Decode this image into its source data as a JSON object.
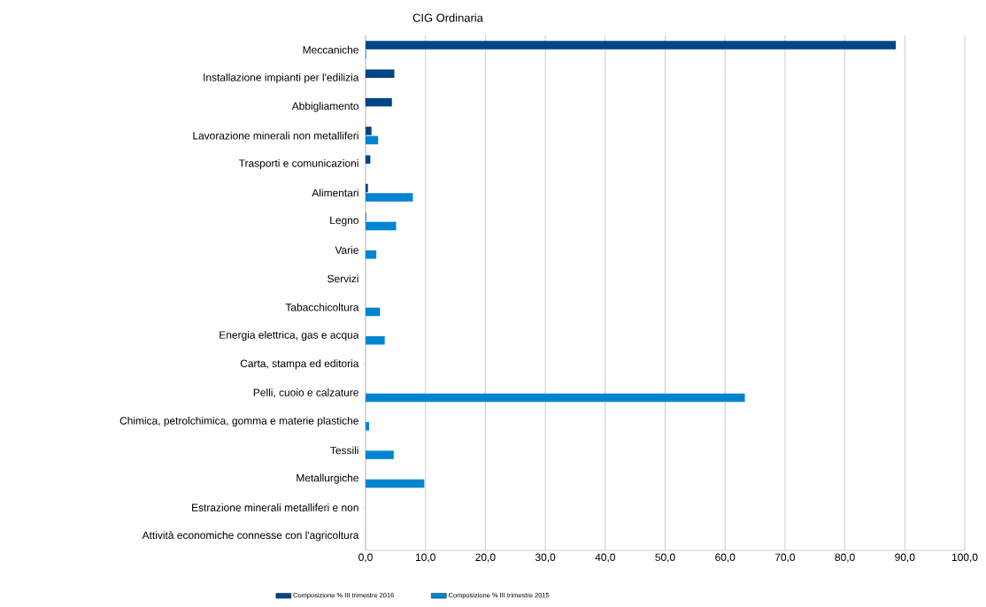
{
  "chart_data": {
    "type": "bar",
    "orientation": "horizontal",
    "title": "CIG Ordinaria",
    "categories": [
      "Meccaniche",
      "Installazione impianti per l'edilizia",
      "Abbigliamento",
      "Lavorazione minerali non metalliferi",
      "Trasporti e comunicazioni",
      "Alimentari",
      "Legno",
      "Varie",
      "Servizi",
      "Tabacchicoltura",
      "Energia elettrica, gas e acqua",
      "Carta, stampa ed editoria",
      "Pelli, cuoio e calzature",
      "Chimica, petrolchimica, gomma e materie plastiche",
      "Tessili",
      "Metallurgiche",
      "Estrazione minerali metalliferi e non",
      "Attività economiche connesse con l'agricoltura"
    ],
    "series": [
      {
        "name": "Composizione % III trimestre 2016",
        "color": "#004586",
        "values": [
          88.5,
          4.8,
          4.4,
          1.0,
          0.8,
          0.4,
          0.1,
          null,
          null,
          null,
          null,
          null,
          null,
          null,
          null,
          null,
          null,
          null
        ]
      },
      {
        "name": "Composizione % III trimestre 2015",
        "color": "#0084d1",
        "values": [
          0.1,
          null,
          null,
          2.1,
          null,
          7.9,
          5.1,
          1.8,
          null,
          2.4,
          3.2,
          null,
          63.3,
          0.6,
          4.7,
          9.8,
          null,
          null
        ]
      }
    ],
    "xlim": [
      0,
      100
    ],
    "xticks": [
      {
        "value": 0,
        "label": "0,0"
      },
      {
        "value": 10,
        "label": "10,0"
      },
      {
        "value": 20,
        "label": "20,0"
      },
      {
        "value": 30,
        "label": "30,0"
      },
      {
        "value": 40,
        "label": "40,0"
      },
      {
        "value": 50,
        "label": "50,0"
      },
      {
        "value": 60,
        "label": "60,0"
      },
      {
        "value": 70,
        "label": "70,0"
      },
      {
        "value": 80,
        "label": "80,0"
      },
      {
        "value": 90,
        "label": "90,0"
      },
      {
        "value": 100,
        "label": "100,0"
      }
    ],
    "grid": "x",
    "legend": "bottom"
  }
}
